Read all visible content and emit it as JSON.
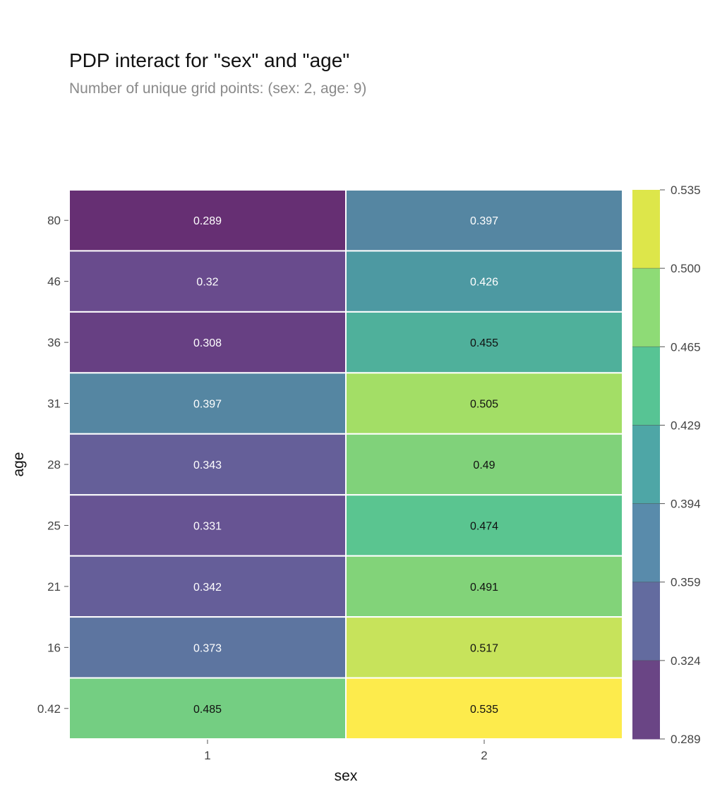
{
  "chart_data": {
    "type": "heatmap",
    "title": "PDP interact for \"sex\" and \"age\"",
    "subtitle": "Number of unique grid points: (sex: 2, age: 9)",
    "xlabel": "sex",
    "ylabel": "age",
    "x_categories": [
      "1",
      "2"
    ],
    "y_categories": [
      "80",
      "46",
      "36",
      "31",
      "28",
      "25",
      "21",
      "16",
      "0.42"
    ],
    "values": [
      [
        0.289,
        0.397
      ],
      [
        0.32,
        0.426
      ],
      [
        0.308,
        0.455
      ],
      [
        0.397,
        0.505
      ],
      [
        0.343,
        0.49
      ],
      [
        0.331,
        0.474
      ],
      [
        0.342,
        0.491
      ],
      [
        0.373,
        0.517
      ],
      [
        0.485,
        0.535
      ]
    ],
    "value_labels": [
      [
        "0.289",
        "0.397"
      ],
      [
        "0.32",
        "0.426"
      ],
      [
        "0.308",
        "0.455"
      ],
      [
        "0.397",
        "0.505"
      ],
      [
        "0.343",
        "0.49"
      ],
      [
        "0.331",
        "0.474"
      ],
      [
        "0.342",
        "0.491"
      ],
      [
        "0.373",
        "0.517"
      ],
      [
        "0.485",
        "0.535"
      ]
    ],
    "colorscale": "viridis",
    "colorbar": {
      "ticks": [
        "0.289",
        "0.324",
        "0.359",
        "0.394",
        "0.429",
        "0.465",
        "0.500",
        "0.535"
      ],
      "bands": [
        "#6a4585",
        "#636b9f",
        "#598bab",
        "#4ea6a6",
        "#57c494",
        "#8edb76",
        "#dde64a"
      ],
      "range": [
        0.289,
        0.535
      ]
    },
    "grid": false
  }
}
